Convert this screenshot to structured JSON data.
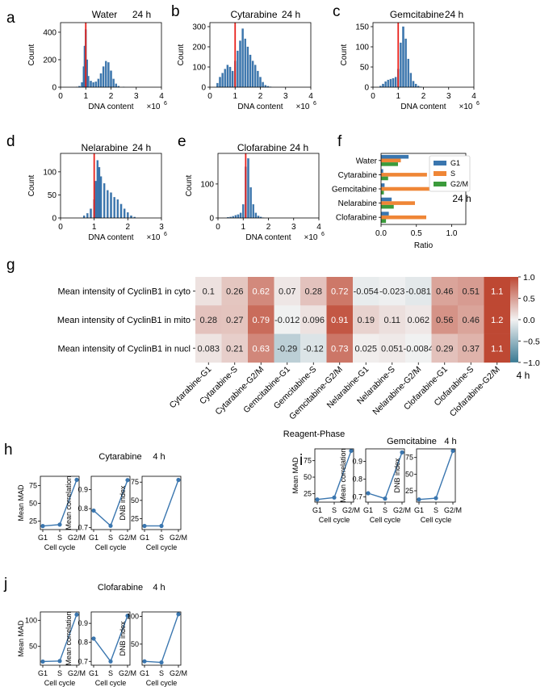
{
  "figure": {
    "caption_ticks": {
      "hist_x": [
        "0",
        "1",
        "2",
        "3",
        "4"
      ],
      "exp": "×10",
      "exp_power": "6"
    },
    "time_24h": "24 h",
    "time_4h": "4 h"
  },
  "chart_data": [
    {
      "panel": "a",
      "type": "bar",
      "title": "Water",
      "time": "24 h",
      "xlabel": "DNA content",
      "ylabel": "Count",
      "x_multiplier": "×10^6",
      "xlim": [
        0,
        4
      ],
      "ylim": [
        0,
        470
      ],
      "xticks": [
        "0",
        "1",
        "2",
        "3",
        "4"
      ],
      "yticks": [
        "0",
        "200",
        "400"
      ],
      "marker_x": 1.0,
      "bin_centers": [
        0.65,
        0.75,
        0.85,
        0.92,
        0.96,
        1.0,
        1.05,
        1.1,
        1.2,
        1.3,
        1.4,
        1.5,
        1.6,
        1.7,
        1.8,
        1.9,
        2.0,
        2.1,
        2.2,
        2.3,
        2.5
      ],
      "values": [
        2,
        8,
        35,
        150,
        300,
        420,
        200,
        80,
        45,
        35,
        40,
        60,
        100,
        150,
        190,
        180,
        120,
        60,
        25,
        8,
        2
      ]
    },
    {
      "panel": "b",
      "type": "bar",
      "title": "Cytarabine",
      "time": "24 h",
      "xlabel": "DNA content",
      "ylabel": "Count",
      "x_multiplier": "×10^6",
      "xlim": [
        0,
        4
      ],
      "ylim": [
        0,
        320
      ],
      "xticks": [
        "0",
        "1",
        "2",
        "3",
        "4"
      ],
      "yticks": [
        "0",
        "100",
        "200",
        "300"
      ],
      "marker_x": 1.0,
      "bin_centers": [
        0.3,
        0.4,
        0.5,
        0.6,
        0.7,
        0.8,
        0.9,
        1.0,
        1.1,
        1.2,
        1.3,
        1.4,
        1.5,
        1.6,
        1.7,
        1.8,
        1.9,
        2.0,
        2.1,
        2.2,
        2.3,
        2.4
      ],
      "values": [
        20,
        50,
        70,
        90,
        110,
        100,
        80,
        130,
        180,
        230,
        290,
        240,
        200,
        160,
        130,
        110,
        80,
        50,
        25,
        10,
        5,
        2
      ]
    },
    {
      "panel": "c",
      "type": "bar",
      "title": "Gemcitabine",
      "time": "24 h",
      "xlabel": "DNA content",
      "ylabel": "Count",
      "x_multiplier": "×10^6",
      "xlim": [
        0,
        4
      ],
      "ylim": [
        0,
        160
      ],
      "xticks": [
        "0",
        "1",
        "2",
        "3",
        "4"
      ],
      "yticks": [
        "0",
        "50",
        "100",
        "150"
      ],
      "marker_x": 1.0,
      "bin_centers": [
        0.3,
        0.4,
        0.5,
        0.6,
        0.7,
        0.8,
        0.9,
        1.0,
        1.1,
        1.2,
        1.3,
        1.4,
        1.5,
        1.6,
        1.7,
        1.8,
        1.9
      ],
      "values": [
        3,
        8,
        14,
        18,
        20,
        22,
        25,
        45,
        110,
        150,
        120,
        70,
        35,
        15,
        8,
        3,
        1
      ]
    },
    {
      "panel": "d",
      "type": "bar",
      "title": "Nelarabine",
      "time": "24 h",
      "xlabel": "DNA content",
      "ylabel": "Count",
      "x_multiplier": "×10^6",
      "xlim": [
        0,
        3
      ],
      "ylim": [
        0,
        140
      ],
      "xticks": [
        "0",
        "1",
        "2",
        "3"
      ],
      "yticks": [
        "0",
        "50",
        "100"
      ],
      "marker_x": 1.0,
      "bin_centers": [
        0.7,
        0.8,
        0.9,
        1.0,
        1.05,
        1.1,
        1.15,
        1.2,
        1.3,
        1.4,
        1.5,
        1.6,
        1.7,
        1.8,
        1.9,
        2.0,
        2.1,
        2.2
      ],
      "values": [
        5,
        10,
        20,
        40,
        80,
        125,
        110,
        90,
        75,
        60,
        55,
        45,
        40,
        30,
        20,
        12,
        5,
        2
      ]
    },
    {
      "panel": "e",
      "type": "bar",
      "title": "Clofarabine",
      "time": "24 h",
      "xlabel": "DNA content",
      "ylabel": "Count",
      "x_multiplier": "×10^6",
      "xlim": [
        0,
        4
      ],
      "ylim": [
        0,
        190
      ],
      "xticks": [
        "0",
        "1",
        "2",
        "3",
        "4"
      ],
      "yticks": [
        "0",
        "100"
      ],
      "marker_x": 1.1,
      "bin_centers": [
        0.4,
        0.5,
        0.6,
        0.7,
        0.8,
        0.9,
        1.0,
        1.1,
        1.2,
        1.3,
        1.4,
        1.5,
        1.6,
        1.7,
        1.8
      ],
      "values": [
        2,
        3,
        5,
        8,
        10,
        15,
        40,
        150,
        175,
        90,
        40,
        15,
        6,
        3,
        1
      ]
    },
    {
      "panel": "f",
      "type": "bar",
      "orientation": "horizontal",
      "time": "24 h",
      "xlabel": "Ratio",
      "xlim": [
        0,
        1.2
      ],
      "xticks": [
        "0.0",
        "0.5",
        "1.0"
      ],
      "categories": [
        "Water",
        "Cytarabine",
        "Gemcitabine",
        "Nelarabine",
        "Clofarabine"
      ],
      "series": [
        {
          "name": "G1",
          "color": "#3a76af",
          "values": [
            0.39,
            0.03,
            0.05,
            0.15,
            0.11
          ]
        },
        {
          "name": "S",
          "color": "#ef8636",
          "values": [
            0.28,
            0.65,
            0.71,
            0.48,
            0.64
          ]
        },
        {
          "name": "G2/M",
          "color": "#3b9b3b",
          "values": [
            0.24,
            0.1,
            0.04,
            0.18,
            0.07
          ]
        }
      ]
    },
    {
      "panel": "g",
      "type": "heatmap",
      "time": "4 h",
      "xlabel": "Reagent-Phase",
      "rows": [
        "Mean intensity of CyclinB1 in cyto",
        "Mean intensity of CyclinB1 in mito",
        "Mean intensity of CyclinB1 in nucl"
      ],
      "columns": [
        "Cytarabine-G1",
        "Cytarabine-S",
        "Cytarabine-G2/M",
        "Gemcitabine-G1",
        "Gemcitabine-S",
        "Gemcitabine-G2/M",
        "Nelarabine-G1",
        "Nelarabine-S",
        "Nelarabine-G2/M",
        "Clofarabine-G1",
        "Clofarabine-S",
        "Clofarabine-G2/M"
      ],
      "values": [
        [
          0.1,
          0.26,
          0.62,
          0.07,
          0.28,
          0.72,
          -0.054,
          -0.023,
          -0.081,
          0.46,
          0.51,
          1.1
        ],
        [
          0.28,
          0.27,
          0.79,
          -0.012,
          0.096,
          0.91,
          0.19,
          0.11,
          0.062,
          0.56,
          0.46,
          1.2
        ],
        [
          0.083,
          0.21,
          0.63,
          -0.29,
          -0.12,
          0.73,
          0.025,
          0.051,
          -0.0084,
          0.29,
          0.37,
          1.1
        ]
      ],
      "labels": [
        [
          "0.1",
          "0.26",
          "0.62",
          "0.07",
          "0.28",
          "0.72",
          "-0.054",
          "-0.023",
          "-0.081",
          "0.46",
          "0.51",
          "1.1"
        ],
        [
          "0.28",
          "0.27",
          "0.79",
          "-0.012",
          "0.096",
          "0.91",
          "0.19",
          "0.11",
          "0.062",
          "0.56",
          "0.46",
          "1.2"
        ],
        [
          "0.083",
          "0.21",
          "0.63",
          "-0.29",
          "-0.12",
          "0.73",
          "0.025",
          "0.051",
          "-0.0084",
          "0.29",
          "0.37",
          "1.1"
        ]
      ],
      "colorbar": {
        "min": -1.0,
        "max": 1.0,
        "ticks": [
          "1.0",
          "0.5",
          "0.0",
          "−0.5",
          "−1.0"
        ]
      }
    },
    {
      "panel": "h",
      "type": "line",
      "title": "Cytarabine",
      "time": "4 h",
      "xlabel": "Cell cycle",
      "categories": [
        "G1",
        "S",
        "G2/M"
      ],
      "subplots": [
        {
          "ylabel": "Mean MAD",
          "values": [
            18,
            20,
            83
          ],
          "ylim": [
            13,
            88
          ],
          "yticks": [
            "25",
            "50",
            "75"
          ]
        },
        {
          "ylabel": "Mean correlation",
          "values": [
            0.79,
            0.71,
            0.95
          ],
          "ylim": [
            0.69,
            0.97
          ],
          "yticks": [
            "0.7",
            "0.8",
            "0.9"
          ]
        },
        {
          "ylabel": "DNB index",
          "values": [
            15,
            15,
            78
          ],
          "ylim": [
            10,
            83
          ],
          "yticks": [
            "25",
            "50",
            "75"
          ]
        }
      ]
    },
    {
      "panel": "i",
      "type": "line",
      "title": "Gemcitabine",
      "time": "4 h",
      "xlabel": "Cell cycle",
      "categories": [
        "G1",
        "S",
        "G2/M"
      ],
      "subplots": [
        {
          "ylabel": "Mean MAD",
          "values": [
            16,
            19,
            90
          ],
          "ylim": [
            12,
            93
          ],
          "yticks": [
            "25",
            "50",
            "75"
          ]
        },
        {
          "ylabel": "Mean correlation",
          "values": [
            0.72,
            0.69,
            0.95
          ],
          "ylim": [
            0.67,
            0.97
          ],
          "yticks": [
            "0.7",
            "0.8",
            "0.9"
          ]
        },
        {
          "ylabel": "DNB index",
          "values": [
            12,
            14,
            85
          ],
          "ylim": [
            8,
            88
          ],
          "yticks": [
            "25",
            "50",
            "75"
          ]
        }
      ]
    },
    {
      "panel": "j",
      "type": "line",
      "title": "Clofarabine",
      "time": "4 h",
      "xlabel": "Cell cycle",
      "categories": [
        "G1",
        "S",
        "G2/M"
      ],
      "subplots": [
        {
          "ylabel": "Mean MAD",
          "values": [
            21,
            22,
            111
          ],
          "ylim": [
            14,
            116
          ],
          "yticks": [
            "50",
            "100"
          ]
        },
        {
          "ylabel": "Mean correlation",
          "values": [
            0.82,
            0.7,
            0.94
          ],
          "ylim": [
            0.68,
            0.96
          ],
          "yticks": [
            "0.7",
            "0.8",
            "0.9"
          ]
        },
        {
          "ylabel": "DNB index",
          "values": [
            19,
            17,
            104
          ],
          "ylim": [
            12,
            108
          ],
          "yticks": [
            "50",
            "100"
          ]
        }
      ]
    }
  ]
}
